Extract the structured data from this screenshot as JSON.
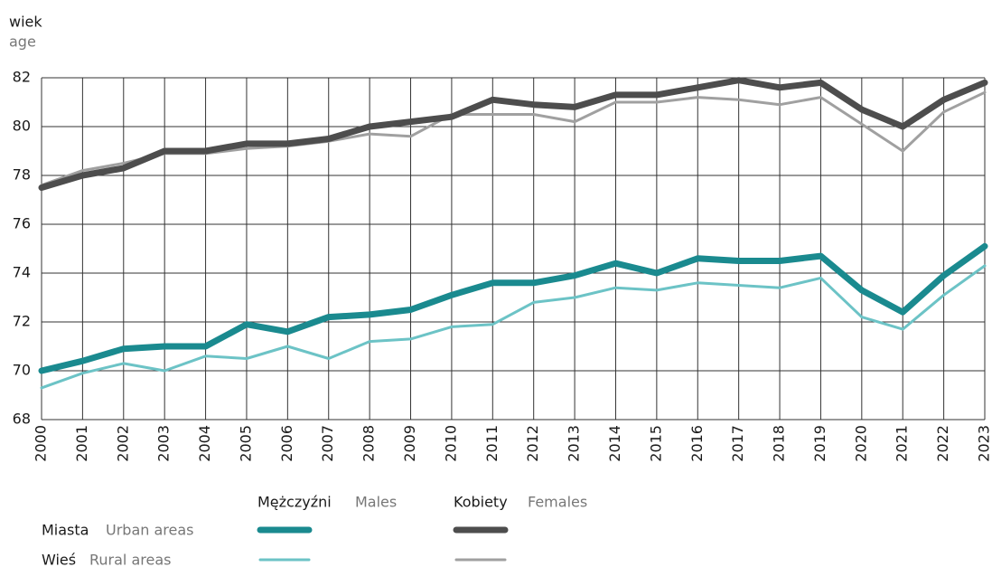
{
  "chart_data": {
    "type": "line",
    "y_label": "wiek",
    "y_label_en": "age",
    "categories": [
      "2000",
      "2001",
      "2002",
      "2003",
      "2004",
      "2005",
      "2006",
      "2007",
      "2008",
      "2009",
      "2010",
      "2011",
      "2012",
      "2013",
      "2014",
      "2015",
      "2016",
      "2017",
      "2018",
      "2019",
      "2020",
      "2021",
      "2022",
      "2023"
    ],
    "ylim": [
      68,
      82
    ],
    "yticks": [
      68,
      70,
      72,
      74,
      76,
      78,
      80,
      82
    ],
    "grid": true,
    "legend": {
      "columns": [
        {
          "pl": "Mężczyźni",
          "en": "Males"
        },
        {
          "pl": "Kobiety",
          "en": "Females"
        }
      ],
      "rows": [
        {
          "pl": "Miasta",
          "en": "Urban areas"
        },
        {
          "pl": "Wieś",
          "en": "Rural areas"
        }
      ]
    },
    "series": [
      {
        "color": "#1a8a8f",
        "width": 7,
        "values": [
          70.0,
          70.4,
          70.9,
          71.0,
          71.0,
          71.9,
          71.6,
          72.2,
          72.3,
          72.5,
          73.1,
          73.6,
          73.6,
          73.9,
          74.4,
          74.0,
          74.6,
          74.5,
          74.5,
          74.7,
          73.3,
          72.4,
          73.9,
          75.1
        ]
      },
      {
        "color": "#6cc3c6",
        "width": 3,
        "values": [
          69.3,
          69.9,
          70.3,
          70.0,
          70.6,
          70.5,
          71.0,
          70.5,
          71.2,
          71.3,
          71.8,
          71.9,
          72.8,
          73.0,
          73.4,
          73.3,
          73.6,
          73.5,
          73.4,
          73.8,
          72.2,
          71.7,
          73.1,
          74.3
        ]
      },
      {
        "color": "#4d4d4d",
        "width": 7,
        "values": [
          77.5,
          78.0,
          78.3,
          79.0,
          79.0,
          79.3,
          79.3,
          79.5,
          80.0,
          80.2,
          80.4,
          81.1,
          80.9,
          80.8,
          81.3,
          81.3,
          81.6,
          81.9,
          81.6,
          81.8,
          80.7,
          80.0,
          81.1,
          81.8
        ]
      },
      {
        "color": "#a0a0a0",
        "width": 3,
        "values": [
          77.6,
          78.2,
          78.5,
          78.9,
          78.9,
          79.1,
          79.2,
          79.4,
          79.7,
          79.6,
          80.5,
          80.5,
          80.5,
          80.2,
          81.0,
          81.0,
          81.2,
          81.1,
          80.9,
          81.2,
          80.1,
          79.0,
          80.6,
          81.4
        ]
      }
    ]
  }
}
